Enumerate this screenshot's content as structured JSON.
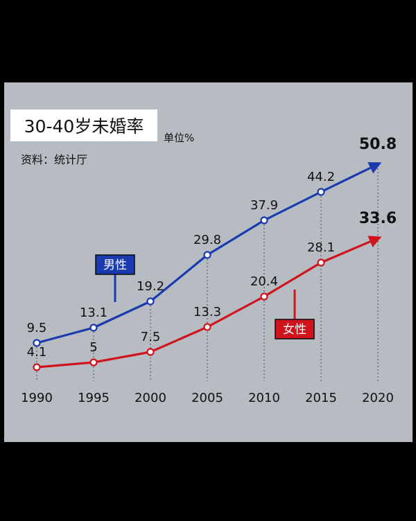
{
  "chart_data": {
    "type": "line",
    "title": "30-40岁未婚率",
    "unit_label": "单位%",
    "source": "资料：统计厅",
    "categories": [
      "1990",
      "1995",
      "2000",
      "2005",
      "2010",
      "2015",
      "2020"
    ],
    "series": [
      {
        "name": "男性",
        "color": "#1a3ab0",
        "values": [
          9.5,
          13.1,
          19.2,
          29.8,
          37.9,
          44.2,
          50.8
        ]
      },
      {
        "name": "女性",
        "color": "#d0141e",
        "values": [
          4.1,
          5,
          7.5,
          13.3,
          20.4,
          28.1,
          33.6
        ]
      }
    ],
    "value_labels": {
      "男性": [
        "9.5",
        "13.1",
        "19.2",
        "29.8",
        "37.9",
        "44.2",
        "50.8"
      ],
      "女性": [
        "4.1",
        "5",
        "7.5",
        "13.3",
        "20.4",
        "28.1",
        "33.6"
      ]
    },
    "xlabel": "",
    "ylabel": "",
    "ylim": [
      0,
      55
    ],
    "grid": false,
    "legend": "inline callouts"
  }
}
